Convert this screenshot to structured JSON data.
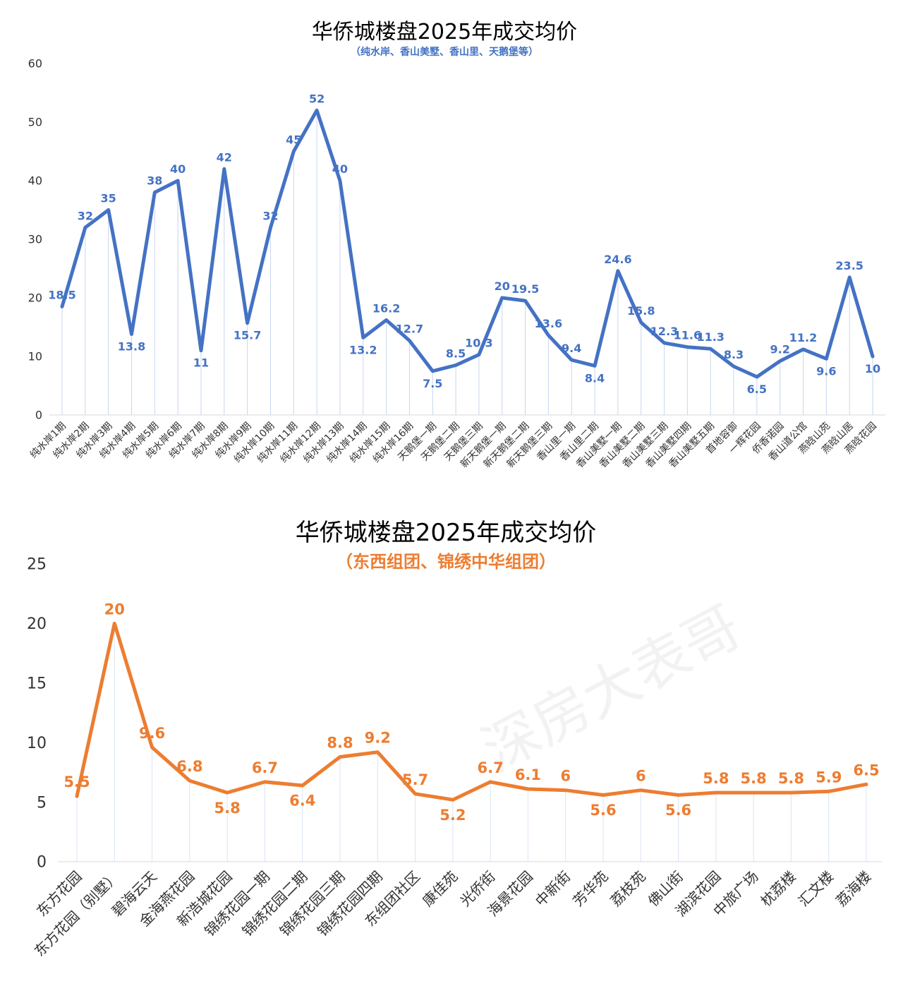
{
  "chart_data": [
    {
      "type": "line",
      "title": "华侨城楼盘2025年成交均价",
      "subtitle": "（纯水岸、香山美墅、香山里、天鹅堡等）",
      "xlabel": "",
      "ylabel": "",
      "ylim": [
        0,
        60
      ],
      "yticks": [
        "0",
        "10",
        "20",
        "30",
        "40",
        "50",
        "60"
      ],
      "grid": false,
      "drop_lines": true,
      "color": "#4472C4",
      "categories": [
        "纯水岸1期",
        "纯水岸2期",
        "纯水岸3期",
        "纯水岸4期",
        "纯水岸5期",
        "纯水岸6期",
        "纯水岸7期",
        "纯水岸8期",
        "纯水岸9期",
        "纯水岸10期",
        "纯水岸11期",
        "纯水岸12期",
        "纯水岸13期",
        "纯水岸14期",
        "纯水岸15期",
        "纯水岸16期",
        "天鹅堡一期",
        "天鹅堡二期",
        "天鹅堡三期",
        "新天鹅堡一期",
        "新天鹅堡二期",
        "新天鹅堡三期",
        "香山里一期",
        "香山里二期",
        "香山美墅一期",
        "香山美墅二期",
        "香山美墅三期",
        "香山美墅四期",
        "香山美墅五期",
        "首地容御",
        "一辉花园",
        "侨香诺园",
        "香山道公馆",
        "燕晗山苑",
        "燕晗山居",
        "燕晗花园"
      ],
      "values": [
        18.5,
        32,
        35,
        13.8,
        38,
        40,
        11,
        42,
        15.7,
        32,
        45,
        52,
        40,
        13.2,
        16.2,
        12.7,
        7.5,
        8.5,
        10.3,
        20,
        19.5,
        13.6,
        9.4,
        8.4,
        24.6,
        15.8,
        12.3,
        11.6,
        11.3,
        8.3,
        6.5,
        9.2,
        11.2,
        9.6,
        23.5,
        10
      ],
      "data_labels": [
        "18.5",
        "32",
        "35",
        "13.8",
        "38",
        "40",
        "11",
        "42",
        "15.7",
        "32",
        "45",
        "52",
        "40",
        "13.2",
        "16.2",
        "12.7",
        "7.5",
        "8.5",
        "10.3",
        "20",
        "19.5",
        "13.6",
        "9.4",
        "8.4",
        "24.6",
        "15.8",
        "12.3",
        "11.6",
        "11.3",
        "8.3",
        "6.5",
        "9.2",
        "11.2",
        "9.6",
        "23.5",
        "10"
      ]
    },
    {
      "type": "line",
      "title": "华侨城楼盘2025年成交均价",
      "subtitle": "（东西组团、锦绣中华组团）",
      "xlabel": "",
      "ylabel": "",
      "ylim": [
        0,
        25
      ],
      "yticks": [
        "0",
        "5",
        "10",
        "15",
        "20",
        "25"
      ],
      "grid": false,
      "drop_lines": true,
      "color": "#ED7D31",
      "categories": [
        "东方花园",
        "东方花园（别墅）",
        "碧海云天",
        "金海燕花园",
        "新浩城花园",
        "锦绣花园一期",
        "锦绣花园二期",
        "锦绣花园三期",
        "锦绣花园四期",
        "东组团社区",
        "康佳苑",
        "光侨街",
        "海景花园",
        "中新街",
        "芳华苑",
        "荔枝苑",
        "佛山街",
        "湖滨花园",
        "中旅广场",
        "枕荔楼",
        "汇文楼",
        "荔海楼"
      ],
      "values": [
        5.5,
        20,
        9.6,
        6.8,
        5.8,
        6.7,
        6.4,
        8.8,
        9.2,
        5.7,
        5.2,
        6.7,
        6.1,
        6,
        5.6,
        6,
        5.6,
        5.8,
        5.8,
        5.8,
        5.9,
        6.5
      ],
      "data_labels": [
        "5.5",
        "20",
        "9.6",
        "6.8",
        "5.8",
        "6.7",
        "6.4",
        "8.8",
        "9.2",
        "5.7",
        "5.2",
        "6.7",
        "6.1",
        "6",
        "5.6",
        "6",
        "5.6",
        "5.8",
        "5.8",
        "5.8",
        "5.9",
        "6.5"
      ]
    }
  ],
  "watermark": "深房大表哥"
}
